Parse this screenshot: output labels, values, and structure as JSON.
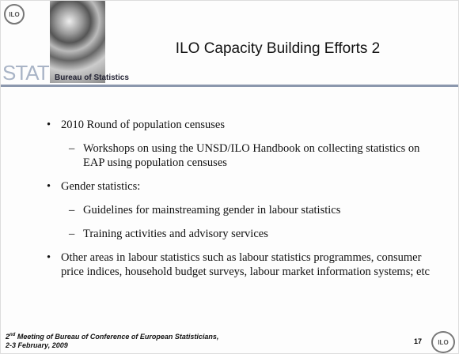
{
  "header": {
    "logo": "ILO",
    "stat": "STAT",
    "subtitle": "Bureau of Statistics",
    "title": "ILO Capacity Building Efforts 2"
  },
  "bullets": [
    {
      "text": "2010 Round of population censuses",
      "subitems": [
        "Workshops on using the UNSD/ILO Handbook on collecting statistics on EAP using population censuses"
      ]
    },
    {
      "text": "Gender statistics:",
      "subitems": [
        "Guidelines for mainstreaming gender in labour statistics",
        "Training activities and advisory services"
      ]
    },
    {
      "text": "Other areas in labour statistics such as labour statistics programmes, consumer price indices, household budget surveys, labour market information systems; etc",
      "subitems": []
    }
  ],
  "footer": {
    "ordinal": "2",
    "suffix": "nd",
    "line1": "Meeting of Bureau of Conference of European Statisticians,",
    "line2": "2-3 February, 2009",
    "page": "17",
    "logo": "ILO"
  }
}
